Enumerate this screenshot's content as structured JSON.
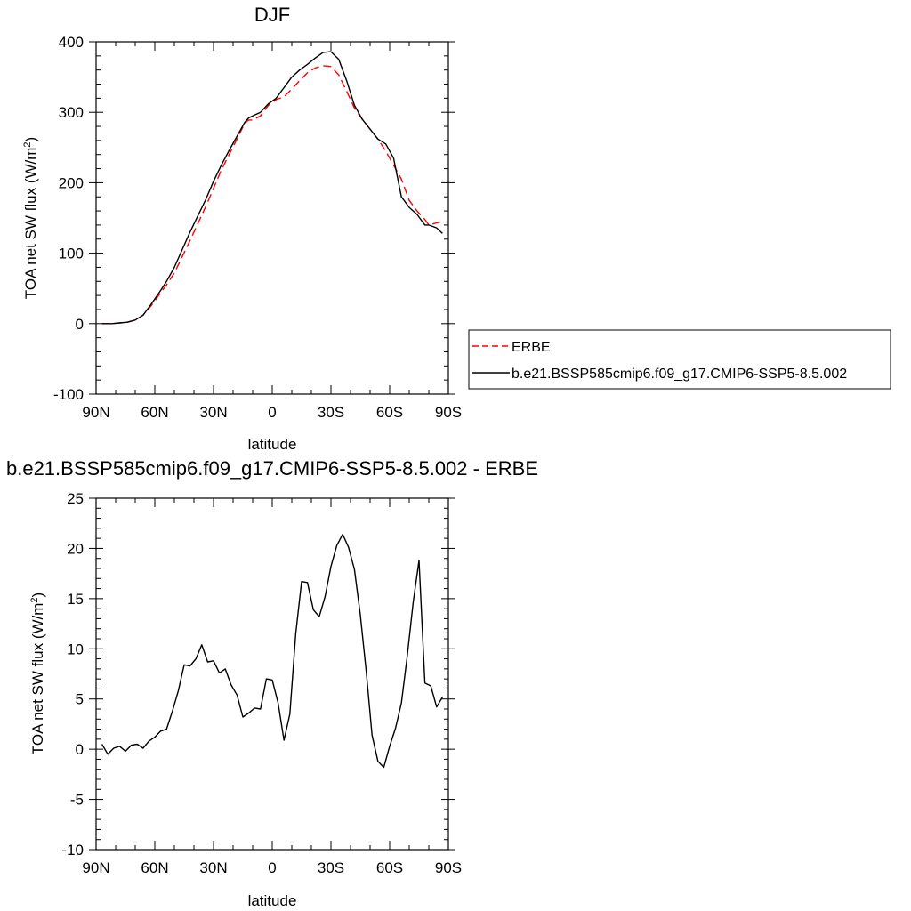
{
  "chart_data": [
    {
      "type": "line",
      "title": "DJF",
      "xlabel": "latitude",
      "ylabel": "TOA net SW flux (W/m",
      "ylabel_sup": "2",
      "ylabel_close": ")",
      "xlim": [
        -90,
        90
      ],
      "ylim": [
        -100,
        400
      ],
      "x_ticks": [
        -90,
        -60,
        -30,
        0,
        30,
        60,
        90
      ],
      "x_tick_labels": [
        "90N",
        "60N",
        "30N",
        "0",
        "30S",
        "60S",
        "90S"
      ],
      "y_ticks": [
        -100,
        0,
        100,
        200,
        300,
        400
      ],
      "y_tick_labels": [
        "-100",
        "0",
        "100",
        "200",
        "300",
        "400"
      ],
      "grid": false,
      "legend_placement": "right-outside",
      "series": [
        {
          "name": "ERBE",
          "color": "#ff0000",
          "dash": "dashed",
          "x": [
            -87,
            -82,
            -78,
            -74,
            -70,
            -66,
            -62,
            -58,
            -54,
            -50,
            -46,
            -42,
            -38,
            -34,
            -30,
            -26,
            -22,
            -18,
            -14,
            -12,
            -10,
            -6,
            -2,
            2,
            6,
            10,
            14,
            18,
            22,
            26,
            30,
            34,
            38,
            42,
            46,
            50,
            54,
            58,
            62,
            66,
            70,
            74,
            78,
            80,
            84,
            87
          ],
          "y": [
            0,
            0,
            1,
            2,
            5,
            12,
            25,
            40,
            55,
            72,
            95,
            118,
            142,
            166,
            192,
            218,
            240,
            262,
            285,
            289,
            289,
            295,
            310,
            318,
            322,
            333,
            345,
            356,
            363,
            366,
            365,
            353,
            330,
            306,
            290,
            276,
            262,
            245,
            225,
            205,
            175,
            160,
            148,
            140,
            143,
            145
          ]
        },
        {
          "name": "b.e21.BSSP585cmip6.f09_g17.CMIP6-SSP5-8.5.002",
          "color": "#000000",
          "dash": "solid",
          "x": [
            -87,
            -82,
            -78,
            -74,
            -70,
            -66,
            -62,
            -58,
            -54,
            -50,
            -46,
            -42,
            -38,
            -34,
            -30,
            -26,
            -22,
            -18,
            -14,
            -12,
            -10,
            -6,
            -2,
            2,
            6,
            10,
            14,
            18,
            22,
            26,
            30,
            34,
            38,
            42,
            46,
            50,
            54,
            58,
            62,
            66,
            70,
            74,
            78,
            80,
            84,
            87
          ],
          "y": [
            0,
            0,
            1,
            2,
            5,
            12,
            27,
            43,
            60,
            80,
            105,
            130,
            153,
            176,
            202,
            225,
            246,
            266,
            286,
            292,
            295,
            300,
            312,
            320,
            335,
            350,
            360,
            368,
            377,
            385,
            386,
            375,
            345,
            310,
            290,
            276,
            262,
            255,
            235,
            180,
            165,
            155,
            140,
            140,
            136,
            128
          ]
        }
      ]
    },
    {
      "type": "line",
      "title": "b.e21.BSSP585cmip6.f09_g17.CMIP6-SSP5-8.5.002 - ERBE",
      "xlabel": "latitude",
      "ylabel": "TOA net SW flux (W/m",
      "ylabel_sup": "2",
      "ylabel_close": ")",
      "xlim": [
        -90,
        90
      ],
      "ylim": [
        -10,
        25
      ],
      "x_ticks": [
        -90,
        -60,
        -30,
        0,
        30,
        60,
        90
      ],
      "x_tick_labels": [
        "90N",
        "60N",
        "30N",
        "0",
        "30S",
        "60S",
        "90S"
      ],
      "y_ticks": [
        -10,
        -5,
        0,
        5,
        10,
        15,
        20,
        25
      ],
      "y_tick_labels": [
        "-10",
        "-5",
        "0",
        "5",
        "10",
        "15",
        "20",
        "25"
      ],
      "grid": false,
      "series": [
        {
          "color": "#000000",
          "dash": "solid",
          "x": [
            -87,
            -84,
            -81,
            -78,
            -75,
            -72,
            -69,
            -66,
            -63,
            -60,
            -57,
            -54,
            -51,
            -48,
            -45,
            -42,
            -39,
            -36,
            -33,
            -30,
            -27,
            -24,
            -21,
            -18,
            -15,
            -12,
            -9,
            -6,
            -3,
            0,
            3,
            6,
            9,
            12,
            15,
            18,
            21,
            24,
            27,
            30,
            33,
            36,
            39,
            42,
            45,
            48,
            51,
            54,
            57,
            60,
            63,
            66,
            69,
            72,
            75,
            78,
            81,
            84,
            87
          ],
          "y": [
            0.5,
            -0.5,
            0.1,
            0.3,
            -0.2,
            0.4,
            0.5,
            0.1,
            0.8,
            1.2,
            1.8,
            2.0,
            3.8,
            5.8,
            8.4,
            8.3,
            9.0,
            10.4,
            8.7,
            8.8,
            7.6,
            8.0,
            6.4,
            5.4,
            3.2,
            3.6,
            4.1,
            4.0,
            7.0,
            6.9,
            4.6,
            0.9,
            3.5,
            11.5,
            16.7,
            16.6,
            13.9,
            13.2,
            15.2,
            18.2,
            20.3,
            21.4,
            20.1,
            17.9,
            13.4,
            7.8,
            1.4,
            -1.2,
            -1.8,
            0.3,
            2.1,
            4.6,
            9.3,
            14.6,
            18.8,
            6.6,
            6.3,
            4.2,
            5.2
          ]
        }
      ]
    }
  ]
}
